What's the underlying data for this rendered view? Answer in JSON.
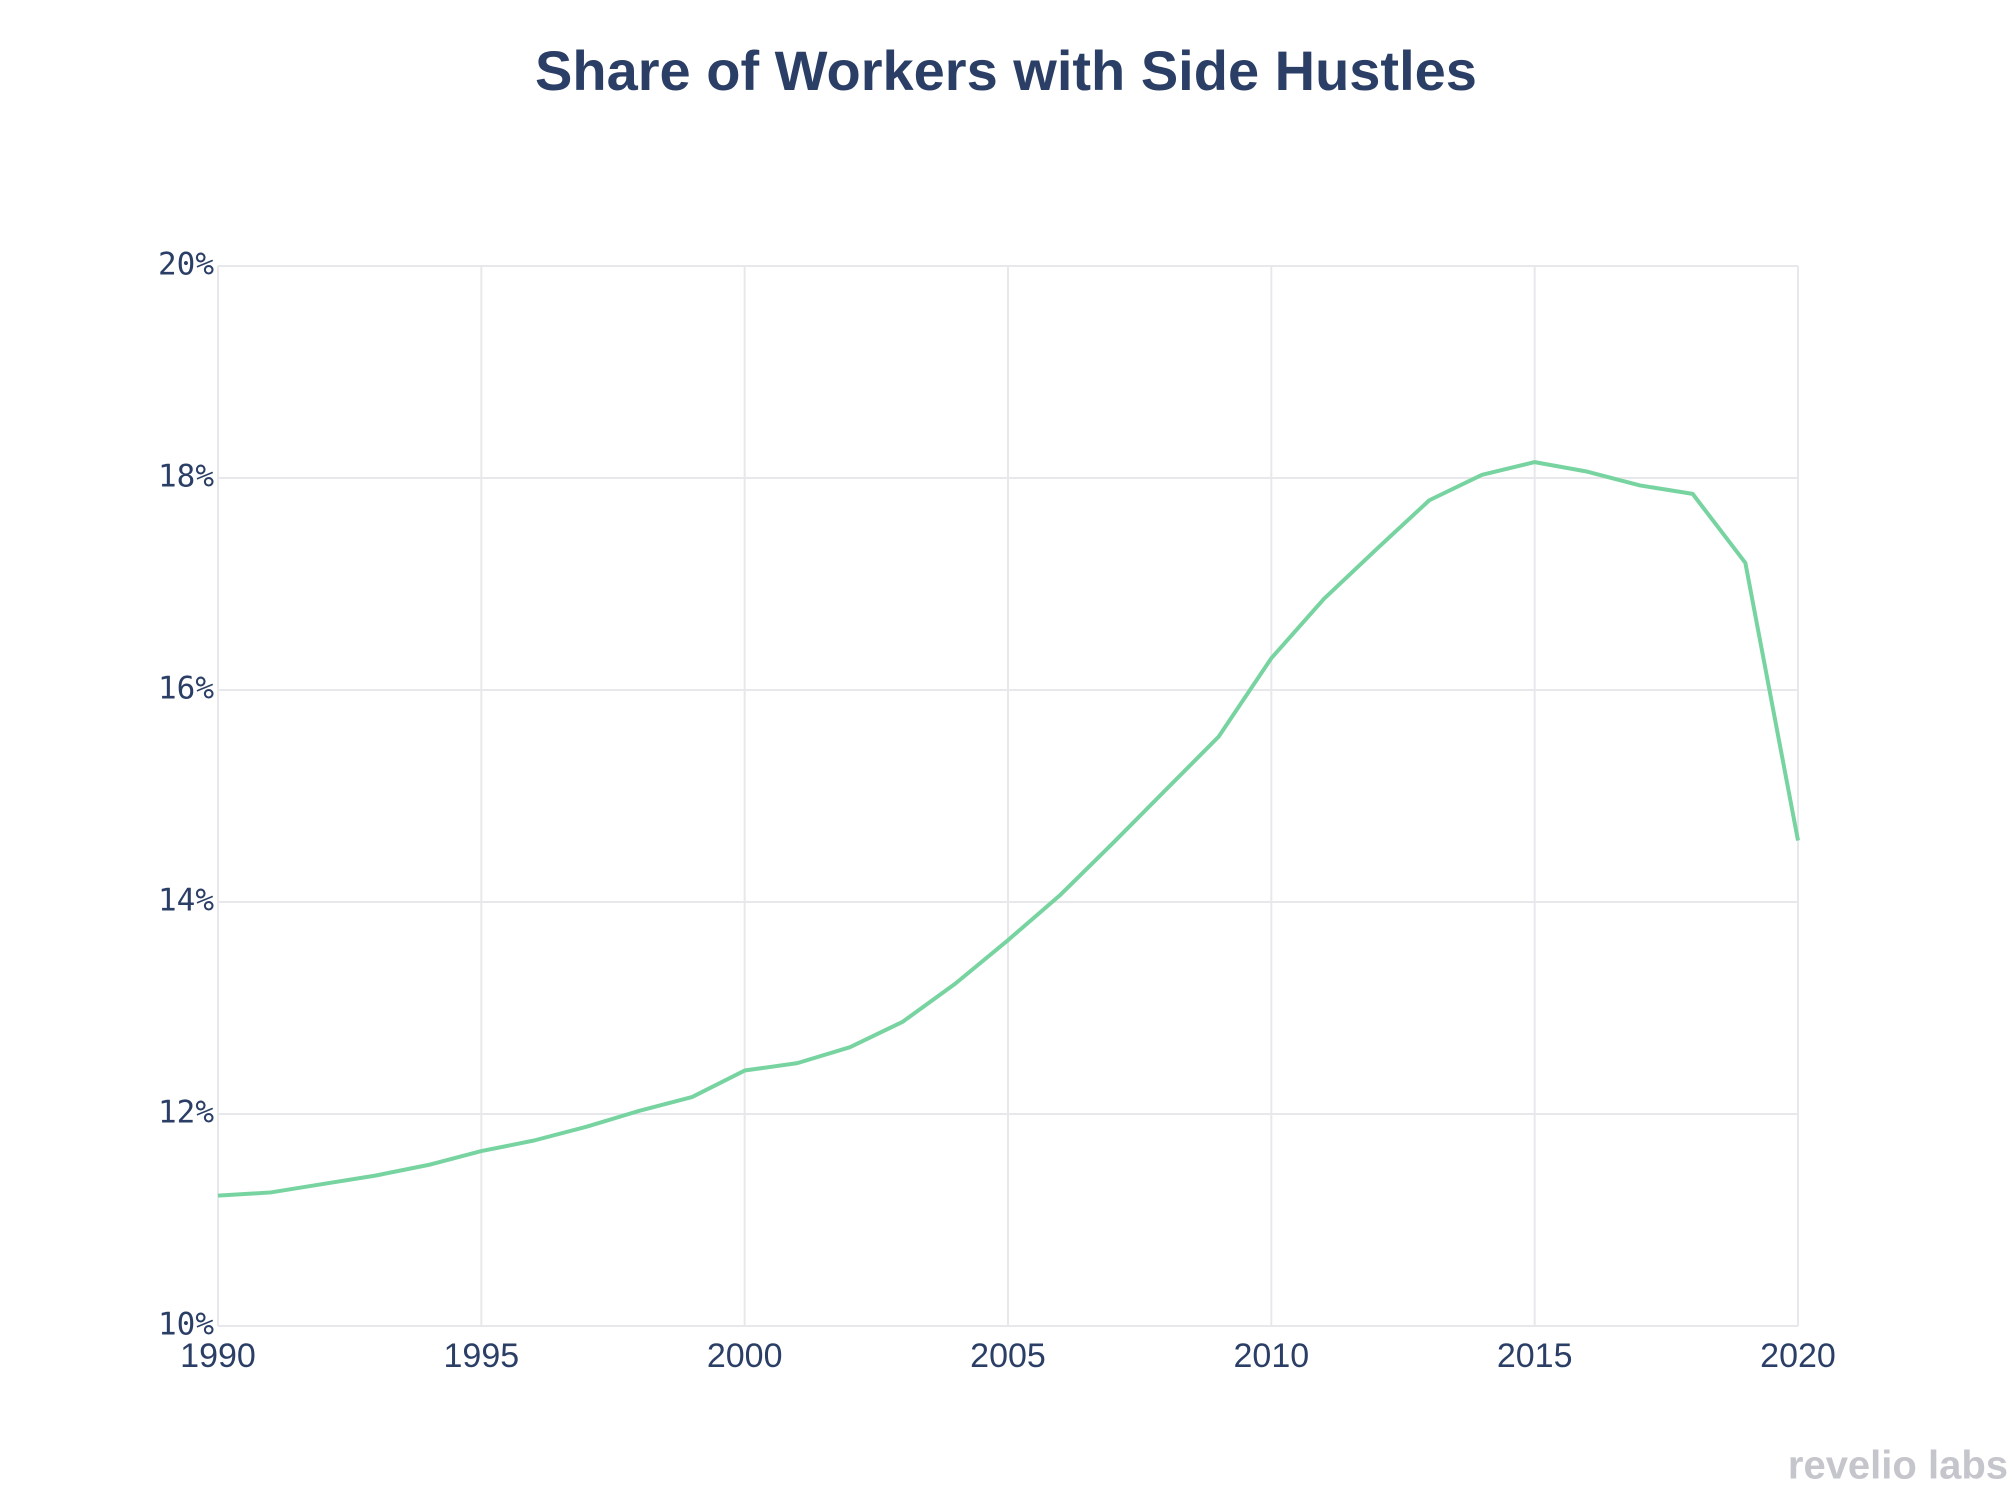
{
  "chart_data": {
    "type": "line",
    "title": "Share of Workers with Side Hustles",
    "x": [
      1990,
      1991,
      1992,
      1993,
      1994,
      1995,
      1996,
      1997,
      1998,
      1999,
      2000,
      2001,
      2002,
      2003,
      2004,
      2005,
      2006,
      2007,
      2008,
      2009,
      2010,
      2011,
      2012,
      2013,
      2014,
      2015,
      2016,
      2017,
      2018,
      2019,
      2020
    ],
    "values": [
      11.23,
      11.26,
      11.34,
      11.42,
      11.52,
      11.65,
      11.75,
      11.88,
      12.03,
      12.16,
      12.41,
      12.48,
      12.63,
      12.87,
      13.23,
      13.64,
      14.07,
      14.56,
      15.06,
      15.56,
      16.3,
      16.86,
      17.33,
      17.79,
      18.03,
      18.15,
      18.06,
      17.93,
      17.85,
      17.2,
      14.58
    ],
    "color": "#77d4a0",
    "xlim": [
      1990,
      2020
    ],
    "xticks": [
      1990,
      1995,
      2000,
      2005,
      2010,
      2015,
      2020
    ],
    "ylim": [
      10,
      20
    ],
    "yticks": [
      {
        "value": 10,
        "label": "10%"
      },
      {
        "value": 12,
        "label": "12%"
      },
      {
        "value": 14,
        "label": "14%"
      },
      {
        "value": 16,
        "label": "16%"
      },
      {
        "value": 18,
        "label": "18%"
      },
      {
        "value": 20,
        "label": "20%"
      }
    ],
    "grid": true,
    "branding": "revelio labs"
  }
}
